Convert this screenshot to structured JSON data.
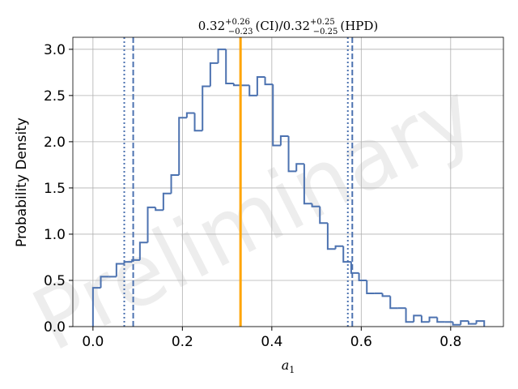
{
  "chart_data": {
    "type": "histogram",
    "title_parts": [
      "0.32",
      "+0.26",
      "−0.23",
      "(CI)/0.32",
      "+0.25",
      "−0.25",
      "(HPD)"
    ],
    "xlabel_parts": [
      "a",
      "1"
    ],
    "ylabel": "Probability Density",
    "watermark": "Preliminary",
    "bins": [
      0,
      0.0175,
      0.035,
      0.0525,
      0.07,
      0.0875,
      0.105,
      0.1225,
      0.14,
      0.1575,
      0.175,
      0.1925,
      0.21,
      0.2275,
      0.245,
      0.2625,
      0.28,
      0.2975,
      0.315,
      0.3325,
      0.35,
      0.3675,
      0.385,
      0.4025,
      0.42,
      0.4375,
      0.455,
      0.4725,
      0.49,
      0.5075,
      0.525,
      0.5425,
      0.56,
      0.5775,
      0.595,
      0.6125,
      0.63,
      0.6475,
      0.665,
      0.6825,
      0.7,
      0.7175,
      0.735,
      0.7525,
      0.77,
      0.7875,
      0.805,
      0.8225,
      0.84,
      0.8575,
      0.875
    ],
    "values": [
      0.42,
      0.54,
      0.54,
      0.68,
      0.7,
      0.72,
      0.91,
      1.29,
      1.26,
      1.44,
      1.64,
      2.26,
      2.31,
      2.12,
      2.6,
      2.85,
      3.0,
      2.63,
      2.61,
      2.61,
      2.5,
      2.7,
      2.62,
      1.96,
      2.06,
      1.68,
      1.76,
      1.33,
      1.3,
      1.12,
      0.84,
      0.87,
      0.7,
      0.58,
      0.5,
      0.36,
      0.36,
      0.33,
      0.2,
      0.2,
      0.05,
      0.12,
      0.05,
      0.1,
      0.05,
      0.05,
      0.02,
      0.06,
      0.03,
      0.06
    ],
    "color": "#4c72b0",
    "lines": [
      {
        "value": 0.33,
        "color": "#ffa500",
        "style": "solid"
      },
      {
        "value": 0.09,
        "color": "#4c72b0",
        "style": "dashed"
      },
      {
        "value": 0.58,
        "color": "#4c72b0",
        "style": "dashed"
      },
      {
        "value": 0.07,
        "color": "#4c72b0",
        "style": "dotted"
      },
      {
        "value": 0.57,
        "color": "#4c72b0",
        "style": "dotted"
      }
    ],
    "xlim": [
      -0.045,
      0.918
    ],
    "ylim": [
      0,
      3.13
    ],
    "xticks": [
      {
        "value": 0,
        "label": "0.0"
      },
      {
        "value": 0.2,
        "label": "0.2"
      },
      {
        "value": 0.4,
        "label": "0.4"
      },
      {
        "value": 0.6,
        "label": "0.6"
      },
      {
        "value": 0.8,
        "label": "0.8"
      }
    ],
    "yticks": [
      {
        "value": 0,
        "label": "0.0"
      },
      {
        "value": 0.5,
        "label": "0.5"
      },
      {
        "value": 1,
        "label": "1.0"
      },
      {
        "value": 1.5,
        "label": "1.5"
      },
      {
        "value": 2,
        "label": "2.0"
      },
      {
        "value": 2.5,
        "label": "2.5"
      },
      {
        "value": 3,
        "label": "3.0"
      }
    ],
    "grid": true
  }
}
